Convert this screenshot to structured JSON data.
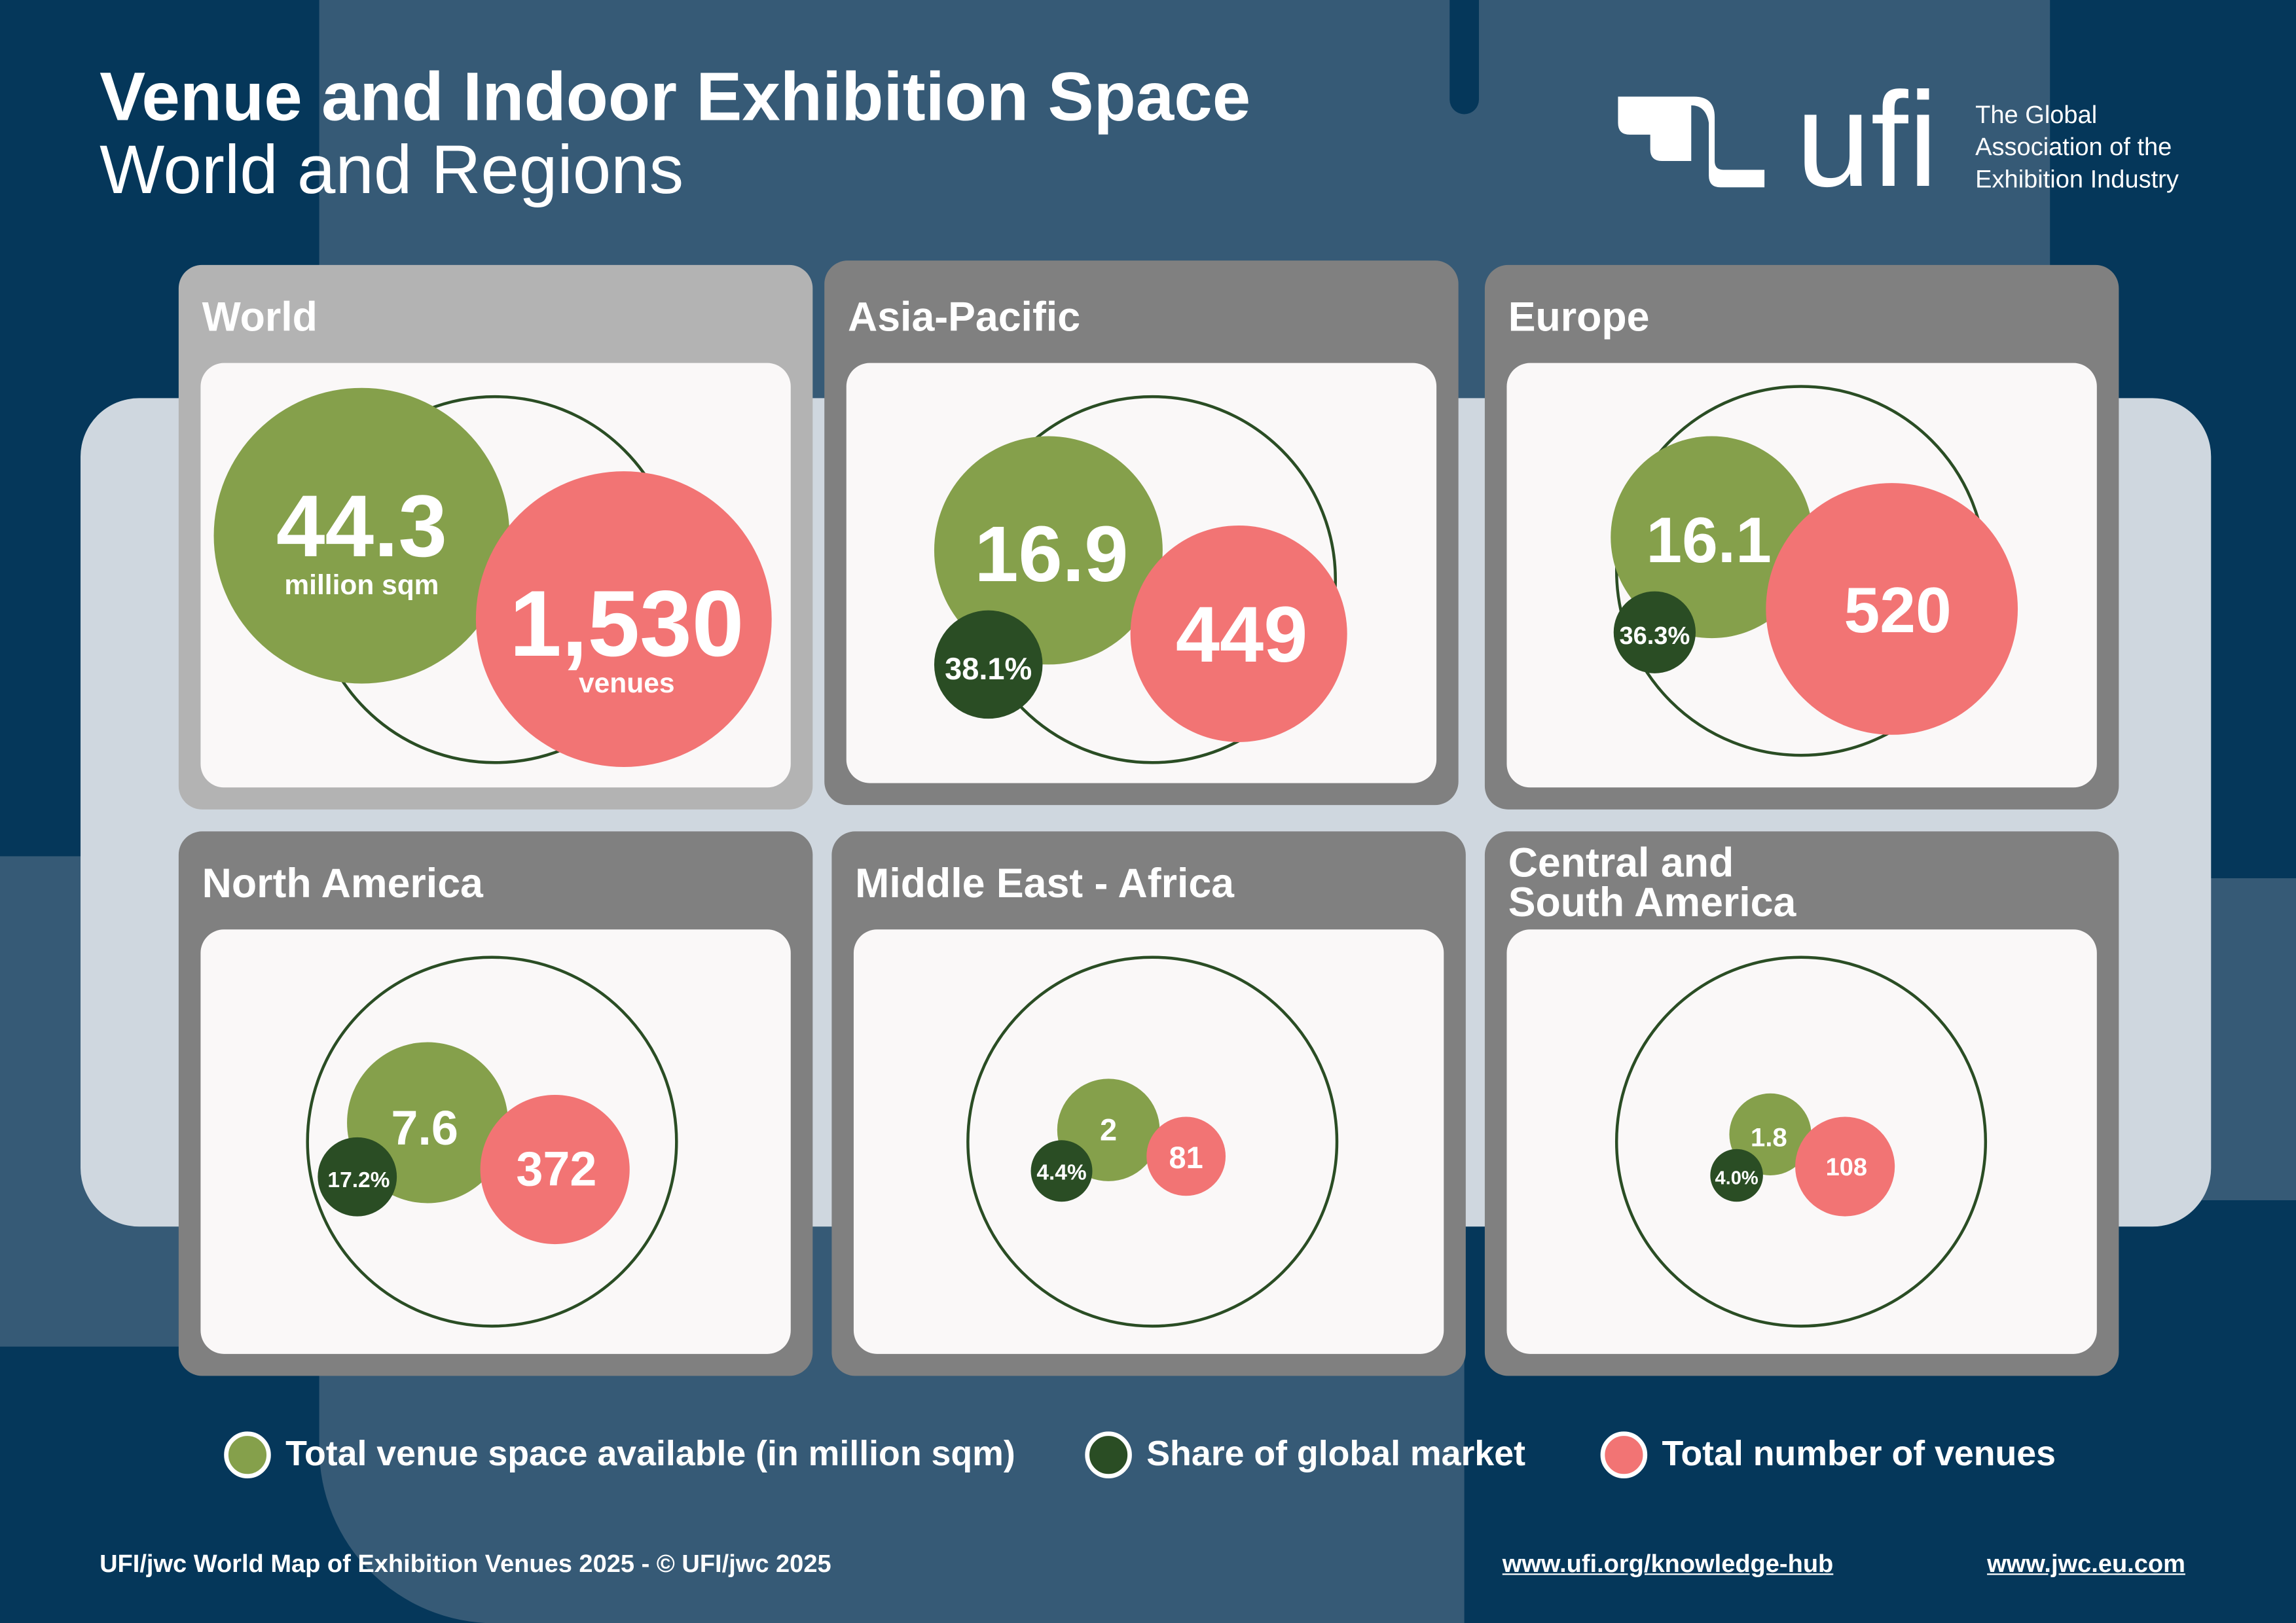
{
  "header": {
    "title": "Venue and Indoor Exhibition Space",
    "subtitle": "World and Regions"
  },
  "logo": {
    "text": "ufi",
    "tagline": [
      "The Global",
      "Association of the",
      "Exhibition Industry"
    ]
  },
  "colors": {
    "background": "#05375a",
    "space": "#85a04b",
    "share": "#2a4d24",
    "venues": "#f27474"
  },
  "regions": [
    {
      "name": "World",
      "space": "44.3",
      "space_unit": "million sqm",
      "venues": "1,530",
      "venues_unit": "venues"
    },
    {
      "name": "Asia-Pacific",
      "space": "16.9",
      "share": "38.1%",
      "venues": "449"
    },
    {
      "name": "Europe",
      "space": "16.1",
      "share": "36.3%",
      "venues": "520"
    },
    {
      "name": "North America",
      "space": "7.6",
      "share": "17.2%",
      "venues": "372"
    },
    {
      "name": "Middle East - Africa",
      "space": "2",
      "share": "4.4%",
      "venues": "81"
    },
    {
      "name": "Central and South America",
      "space": "1.8",
      "share": "4.0%",
      "venues": "108"
    }
  ],
  "legend": [
    "Total venue space available (in million sqm)",
    "Share of global market",
    "Total number of venues"
  ],
  "footer": {
    "credit": "UFI/jwc World Map of Exhibition Venues 2025 - © UFI/jwc 2025",
    "link1": "www.ufi.org/knowledge-hub",
    "link2": "www.jwc.eu.com"
  }
}
